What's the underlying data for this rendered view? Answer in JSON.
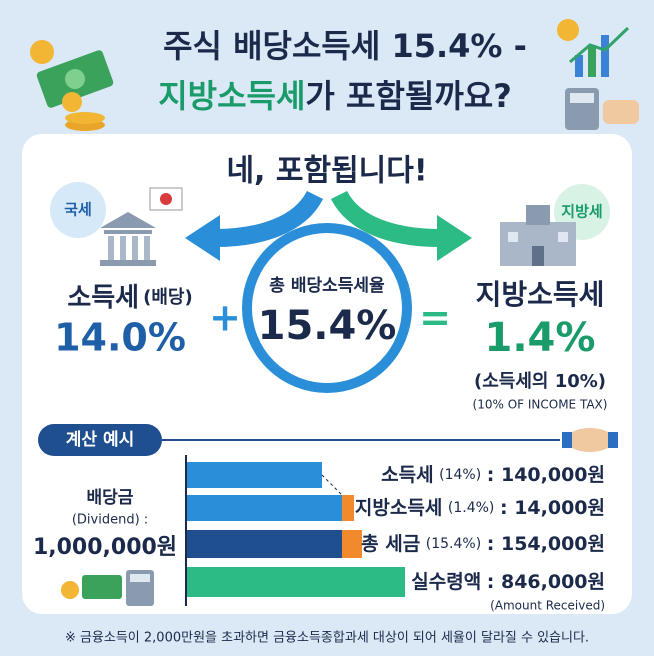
{
  "header": {
    "title_line1": "주식 배당소득세 15.4% -",
    "title_line2_highlight": "지방소득세",
    "title_line2_rest": "가 포함될까요?"
  },
  "answer": "네, 포함됩니다!",
  "national": {
    "badge": "국세",
    "label": "소득세",
    "label_sub": "(배당)",
    "rate": "14.0%"
  },
  "plus": "+",
  "equals": "=",
  "total": {
    "label": "총 배당소득세율",
    "rate": "15.4%"
  },
  "local": {
    "badge": "지방세",
    "label": "지방소득세",
    "rate": "1.4%",
    "note": "(소득세의 10%)",
    "note_en": "(10% OF INCOME TAX)"
  },
  "example": {
    "heading": "계산 예시",
    "base_label": "배당금",
    "base_label_en": "(Dividend) :",
    "base_amount": "1,000,000원",
    "rows": [
      {
        "label": "소득세",
        "rate": "(14%)",
        "amount": ": 140,000원"
      },
      {
        "label": "지방소득세",
        "rate": "(1.4%)",
        "amount": ": 14,000원"
      },
      {
        "label": "총 세금",
        "rate": "(15.4%)",
        "amount": ": 154,000원"
      },
      {
        "label": "실수령액",
        "rate": "",
        "amount": ": 846,000원"
      }
    ],
    "received_en": "(Amount Received)"
  },
  "footnote": "※ 금융소득이 2,000만원을 초과하면 금융소득종합과세 대상이 되어 세율이 달라질 수 있습니다."
}
